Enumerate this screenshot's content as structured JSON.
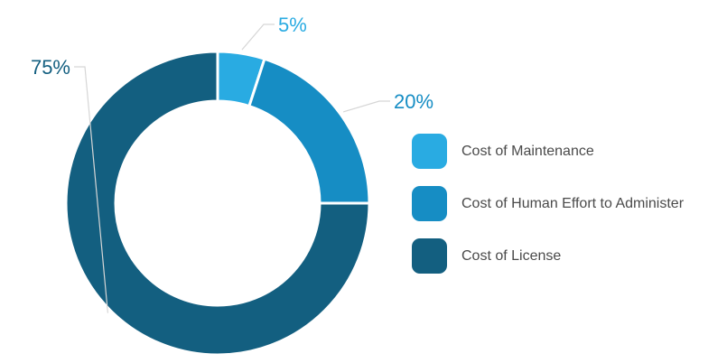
{
  "chart_data": {
    "type": "pie",
    "variant": "donut",
    "title": "",
    "legend_position": "right",
    "slices": [
      {
        "label": "Cost of Maintenance",
        "value": 5,
        "display": "5%",
        "color": "#29ABE2"
      },
      {
        "label": "Cost of Human Effort to Administer",
        "value": 20,
        "display": "20%",
        "color": "#168DC4"
      },
      {
        "label": "Cost of License",
        "value": 75,
        "display": "75%",
        "color": "#135F80"
      }
    ]
  }
}
